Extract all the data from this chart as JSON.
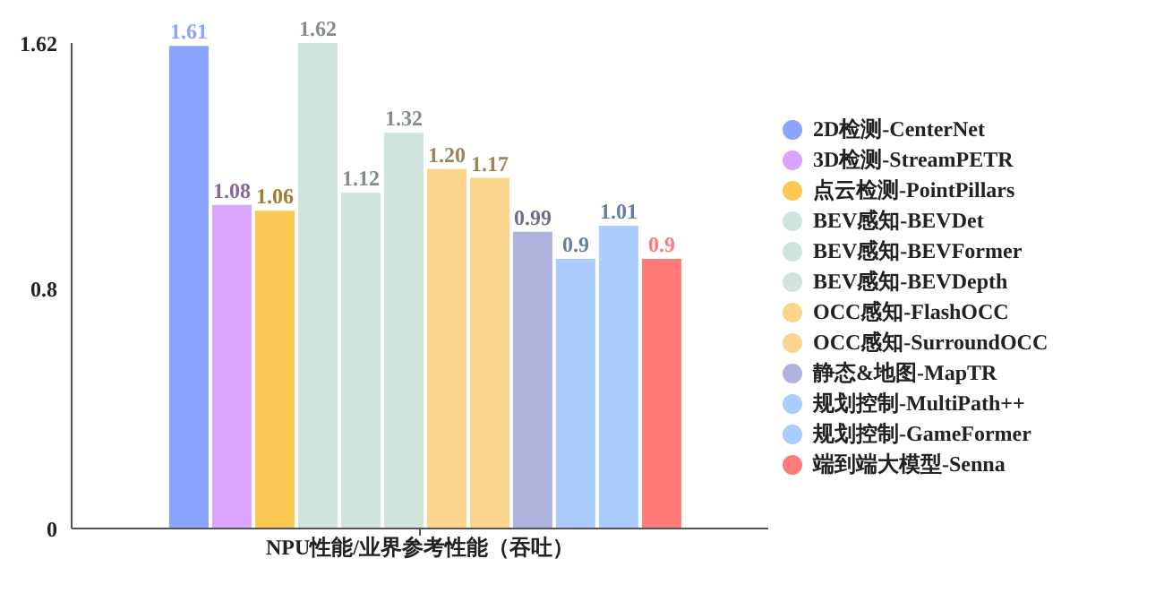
{
  "chart_data": {
    "type": "bar",
    "categories": [
      "NPU性能/业界参考性能（吞吐）"
    ],
    "ylim": [
      0,
      1.62
    ],
    "yticks": [
      0,
      0.8,
      1.62
    ],
    "grid": false,
    "legend": "right",
    "series": [
      {
        "name": "2D检测-CenterNet",
        "color": "#8aa4ff",
        "values": [
          1.61
        ],
        "value_labels": [
          "1.61"
        ]
      },
      {
        "name": "3D检测-StreamPETR",
        "color": "#dba4ff",
        "values": [
          1.08
        ],
        "value_labels": [
          "1.08"
        ]
      },
      {
        "name": "点云检测-PointPillars",
        "color": "#fdc955",
        "values": [
          1.06
        ],
        "value_labels": [
          "1.06"
        ]
      },
      {
        "name": "BEV感知-BEVDet",
        "color": "#d0e4dc",
        "values": [
          1.62
        ],
        "value_labels": [
          "1.62"
        ]
      },
      {
        "name": "BEV感知-BEVFormer",
        "color": "#d0e4dc",
        "values": [
          1.12
        ],
        "value_labels": [
          "1.12"
        ]
      },
      {
        "name": "BEV感知-BEVDepth",
        "color": "#d0e4dc",
        "values": [
          1.32
        ],
        "value_labels": [
          "1.32"
        ]
      },
      {
        "name": "OCC感知-FlashOCC",
        "color": "#fbd48e",
        "values": [
          1.2
        ],
        "value_labels": [
          "1.20"
        ]
      },
      {
        "name": "OCC感知-SurroundOCC",
        "color": "#fbd48e",
        "values": [
          1.17
        ],
        "value_labels": [
          "1.17"
        ]
      },
      {
        "name": "静态&地图-MapTR",
        "color": "#b0b2de",
        "values": [
          0.99
        ],
        "value_labels": [
          "0.99"
        ]
      },
      {
        "name": "规划控制-MultiPath++",
        "color": "#aaccff",
        "values": [
          0.9
        ],
        "value_labels": [
          "0.9"
        ]
      },
      {
        "name": "规划控制-GameFormer",
        "color": "#aaccff",
        "values": [
          1.01
        ],
        "value_labels": [
          "1.01"
        ]
      },
      {
        "name": "端到端大模型-Senna",
        "color": "#ff7b77",
        "values": [
          0.9
        ],
        "value_labels": [
          "0.9"
        ]
      }
    ]
  }
}
